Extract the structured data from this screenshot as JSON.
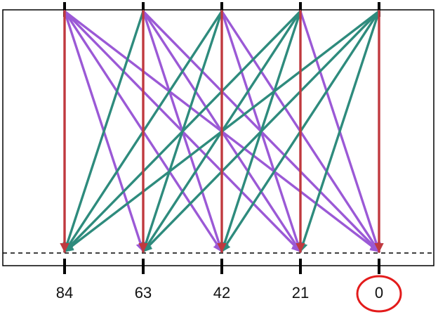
{
  "diagram": {
    "columns": [
      {
        "label": "84"
      },
      {
        "label": "63"
      },
      {
        "label": "42"
      },
      {
        "label": "21"
      },
      {
        "label": "0"
      }
    ],
    "highlighted_label": "0",
    "colors": {
      "vertical": "#c0393f",
      "rightward": "#9b59d6",
      "leftward": "#2e8b7d",
      "frame": "#000000",
      "highlight": "#e31b1b"
    }
  }
}
